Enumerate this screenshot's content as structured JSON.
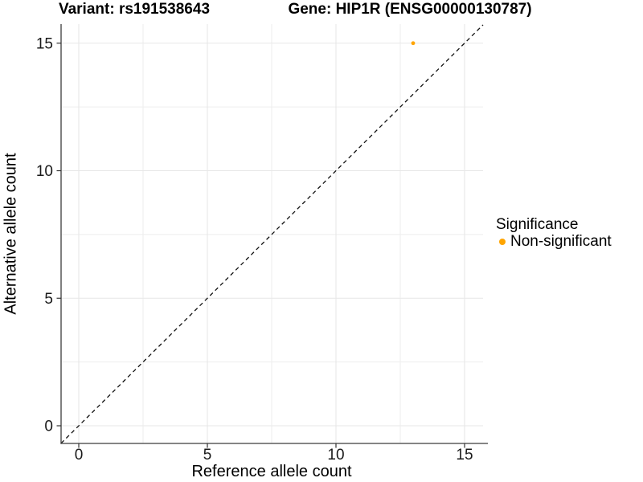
{
  "header": {
    "variant_title": "Variant: rs191538643",
    "gene_title": "Gene: HIP1R (ENSG00000130787)"
  },
  "chart_data": {
    "type": "scatter",
    "xlabel": "Reference allele count",
    "ylabel": "Alternative allele count",
    "xlim": [
      -0.75,
      15.75
    ],
    "ylim": [
      -0.75,
      15.75
    ],
    "x_ticks": [
      0,
      5,
      10,
      15
    ],
    "y_ticks": [
      0,
      5,
      10,
      15
    ],
    "x_minor_gridlines": [
      2.5,
      7.5,
      12.5
    ],
    "y_minor_gridlines": [
      2.5,
      7.5,
      12.5
    ],
    "grid": "major+minor",
    "points": [
      {
        "x": 13,
        "y": 15,
        "series": "Non-significant"
      }
    ],
    "reference_line": {
      "slope": 1,
      "intercept": 0,
      "style": "dashed"
    },
    "legend": {
      "position": "right",
      "title": "Significance",
      "entries": [
        {
          "label": "Non-significant",
          "color": "#FFA500"
        }
      ]
    },
    "colors": {
      "point": "#FFA500",
      "grid_major": "#E7E7E7",
      "grid_minor": "#EDEDED",
      "axis_line": "#3C3C3C",
      "tick_mark": "#333333",
      "tick_text": "#1A1A1A",
      "reference_line": "#111111",
      "background": "#FFFFFF"
    }
  }
}
